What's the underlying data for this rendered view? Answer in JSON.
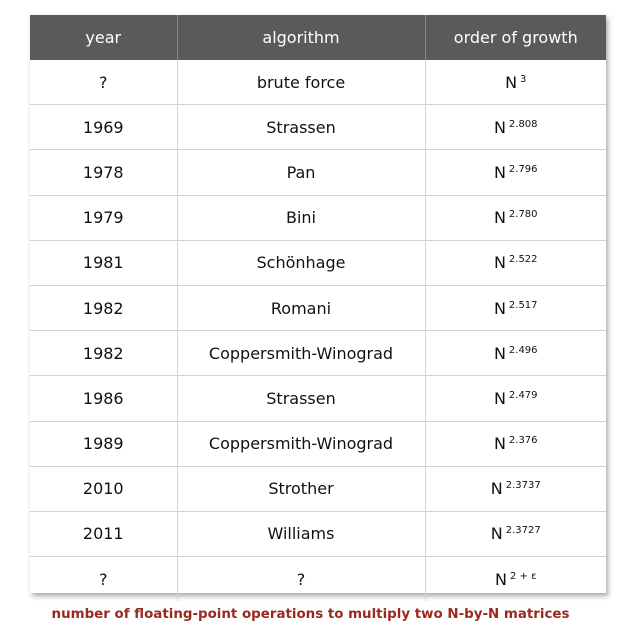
{
  "table": {
    "headers": {
      "year": "year",
      "algorithm": "algorithm",
      "order": "order of growth"
    },
    "rows": [
      {
        "year": "?",
        "algorithm": "brute force",
        "base": "N",
        "exp": "3"
      },
      {
        "year": "1969",
        "algorithm": "Strassen",
        "base": "N",
        "exp": "2.808"
      },
      {
        "year": "1978",
        "algorithm": "Pan",
        "base": "N",
        "exp": "2.796"
      },
      {
        "year": "1979",
        "algorithm": "Bini",
        "base": "N",
        "exp": "2.780"
      },
      {
        "year": "1981",
        "algorithm": "Schönhage",
        "base": "N",
        "exp": "2.522"
      },
      {
        "year": "1982",
        "algorithm": "Romani",
        "base": "N",
        "exp": "2.517"
      },
      {
        "year": "1982",
        "algorithm": "Coppersmith-Winograd",
        "base": "N",
        "exp": "2.496"
      },
      {
        "year": "1986",
        "algorithm": "Strassen",
        "base": "N",
        "exp": "2.479"
      },
      {
        "year": "1989",
        "algorithm": "Coppersmith-Winograd",
        "base": "N",
        "exp": "2.376"
      },
      {
        "year": "2010",
        "algorithm": "Strother",
        "base": "N",
        "exp": "2.3737"
      },
      {
        "year": "2011",
        "algorithm": "Williams",
        "base": "N",
        "exp": "2.3727"
      },
      {
        "year": "?",
        "algorithm": "?",
        "base": "N",
        "exp": "2 + ε"
      }
    ]
  },
  "caption": "number of floating-point operations to multiply two N-by-N matrices",
  "colors": {
    "header_bg": "#5a5a5a",
    "header_text": "#ffffff",
    "caption": "#9a2a1d",
    "grid": "#d3d3d3"
  }
}
